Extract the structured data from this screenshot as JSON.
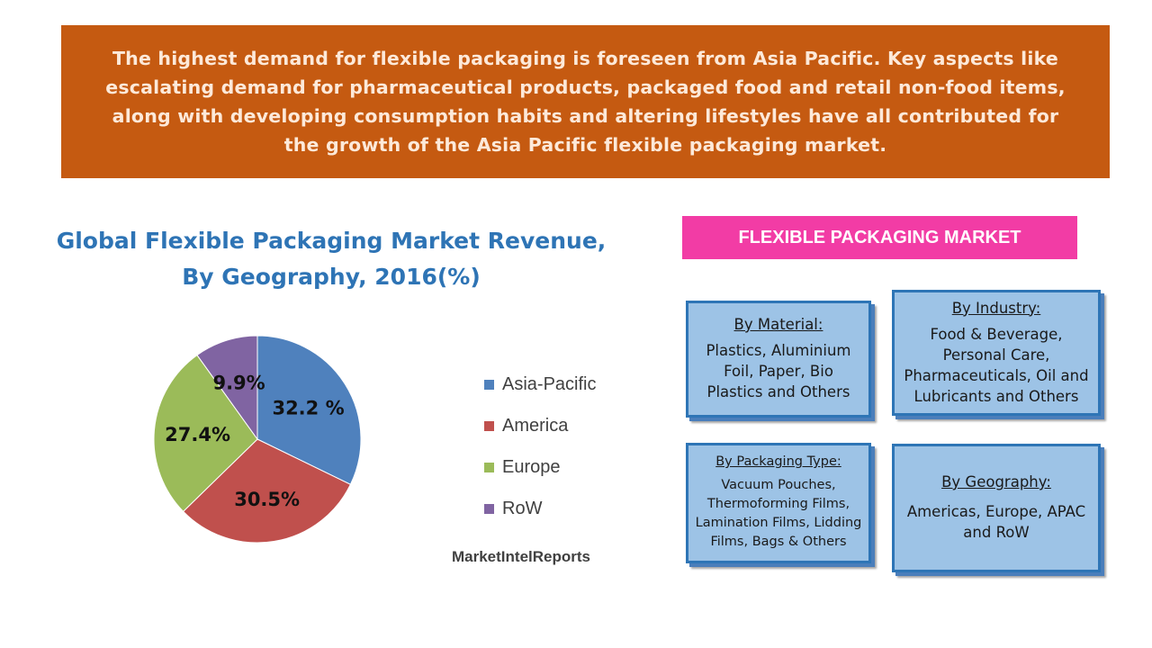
{
  "banner": {
    "text": "The highest demand for flexible packaging is foreseen from Asia Pacific. Key aspects like escalating demand for pharmaceutical products, packaged food and retail non-food items, along with developing consumption habits and altering lifestyles have all contributed for the growth of the Asia Pacific flexible packaging market."
  },
  "chart_data": {
    "type": "pie",
    "title": "Global Flexible Packaging Market Revenue, By Geography, 2016(%)",
    "categories": [
      "Asia-Pacific",
      "America",
      "Europe",
      "RoW"
    ],
    "values": [
      32.2,
      30.5,
      27.4,
      9.9
    ],
    "data_labels": [
      "32.2 %",
      "30.5%",
      "27.4%",
      "9.9%"
    ],
    "colors": [
      "#4f81bd",
      "#c0504d",
      "#9bbb59",
      "#8064a2"
    ],
    "legend_position": "right",
    "source": "MarketIntelReports"
  },
  "segments": {
    "header": "FLEXIBLE PACKAGING MARKET",
    "material": {
      "title": "By Material:",
      "body": "Plastics, Aluminium Foil, Paper, Bio Plastics and Others"
    },
    "industry": {
      "title": "By Industry:",
      "body": "Food & Beverage, Personal Care, Pharmaceuticals, Oil and Lubricants and Others"
    },
    "packaging": {
      "title": "By Packaging Type:",
      "body": "Vacuum Pouches, Thermoforming Films, Lamination Films, Lidding Films, Bags & Others"
    },
    "geography": {
      "title": "By Geography:",
      "body": "Americas, Europe, APAC and RoW"
    }
  }
}
